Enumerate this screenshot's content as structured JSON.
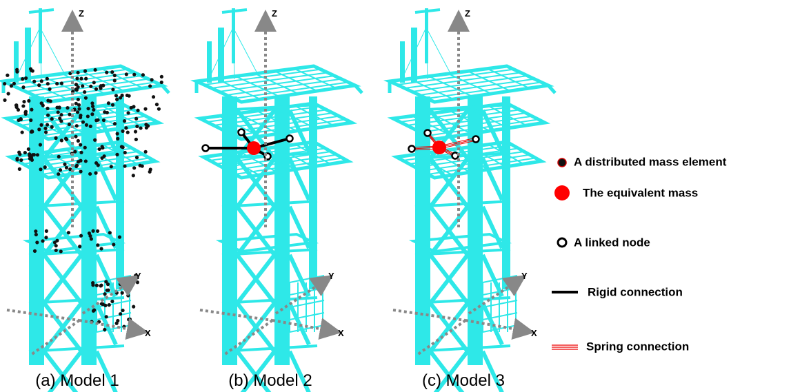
{
  "panels": [
    {
      "caption": "(a) Model 1",
      "axes": {
        "z": "Z",
        "y": "Y",
        "x": "X"
      }
    },
    {
      "caption": "(b) Model 2",
      "axes": {
        "z": "Z",
        "y": "Y",
        "x": "X"
      }
    },
    {
      "caption": "(c) Model 3",
      "axes": {
        "z": "Z",
        "y": "Y",
        "x": "X"
      }
    }
  ],
  "legend": [
    {
      "label": "A distributed mass element"
    },
    {
      "label": "The equivalent mass"
    },
    {
      "label": "A linked node"
    },
    {
      "label": "Rigid connection"
    },
    {
      "label": "Spring connection"
    }
  ]
}
